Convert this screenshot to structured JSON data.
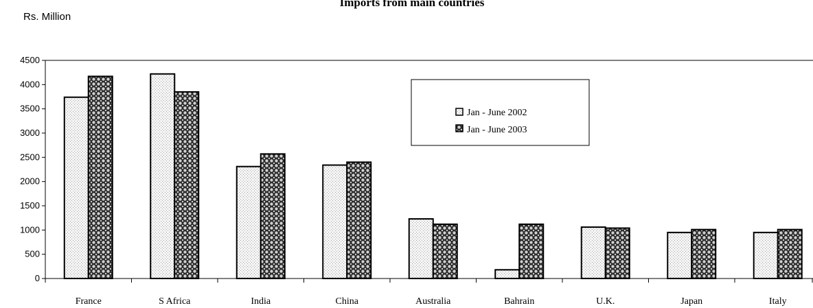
{
  "chart_data": {
    "type": "bar",
    "title": "Imports from main countries",
    "ylabel": "Rs. Million",
    "categories": [
      "France",
      "S Africa",
      "India",
      "China",
      "Australia",
      "Bahrain",
      "U.K.",
      "Japan",
      "Italy"
    ],
    "series": [
      {
        "name": "Jan - June 2002",
        "values": [
          3740,
          4220,
          2310,
          2340,
          1230,
          180,
          1060,
          950,
          950
        ]
      },
      {
        "name": "Jan - June 2003",
        "values": [
          4170,
          3850,
          2570,
          2400,
          1120,
          1120,
          1040,
          1010,
          1010
        ]
      }
    ],
    "ylim": [
      0,
      4500
    ],
    "yticks": [
      0,
      500,
      1000,
      1500,
      2000,
      2500,
      3000,
      3500,
      4000,
      4500
    ],
    "grid": false,
    "legend_position": "top-right"
  }
}
